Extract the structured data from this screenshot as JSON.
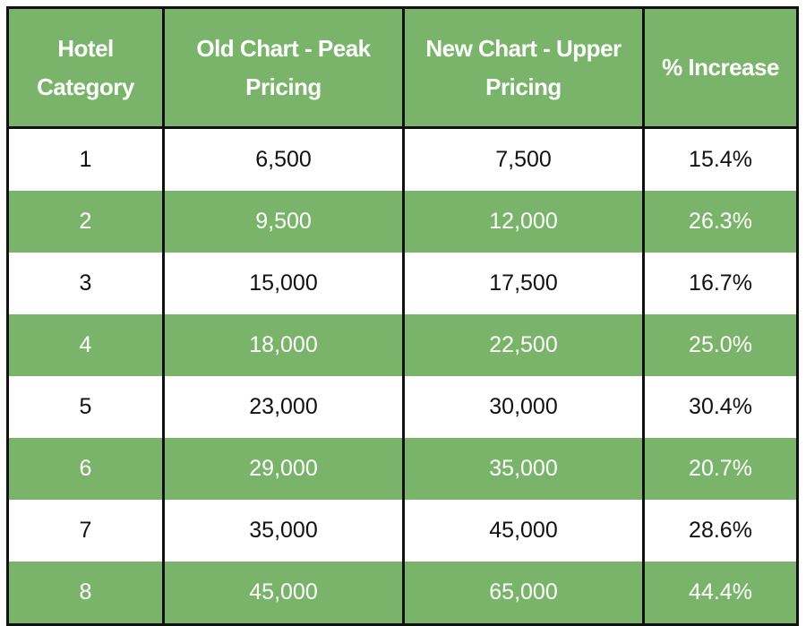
{
  "colors": {
    "header_bg": "#7ab46a",
    "band_bg": "#7ab46a",
    "border": "#111111"
  },
  "chart_data": {
    "type": "table",
    "columns": [
      "Hotel Category",
      "Old Chart - Peak Pricing",
      "New Chart - Upper Pricing",
      "% Increase"
    ],
    "rows": [
      [
        "1",
        "6,500",
        "7,500",
        "15.4%"
      ],
      [
        "2",
        "9,500",
        "12,000",
        "26.3%"
      ],
      [
        "3",
        "15,000",
        "17,500",
        "16.7%"
      ],
      [
        "4",
        "18,000",
        "22,500",
        "25.0%"
      ],
      [
        "5",
        "23,000",
        "30,000",
        "30.4%"
      ],
      [
        "6",
        "29,000",
        "35,000",
        "20.7%"
      ],
      [
        "7",
        "35,000",
        "45,000",
        "28.6%"
      ],
      [
        "8",
        "45,000",
        "65,000",
        "44.4%"
      ]
    ]
  }
}
